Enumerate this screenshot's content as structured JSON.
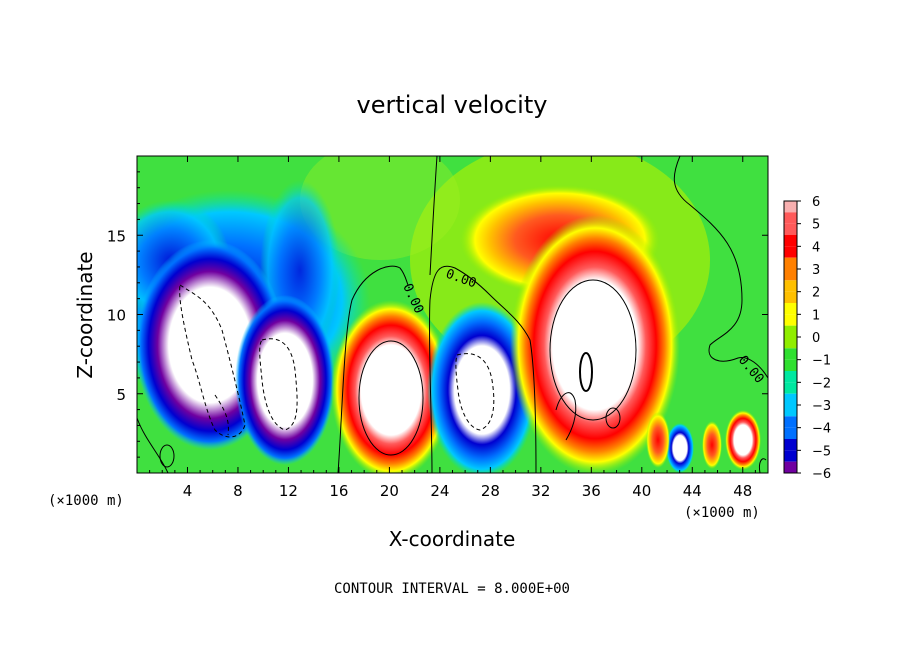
{
  "chart_data": {
    "type": "heatmap",
    "title": "vertical velocity",
    "xlabel": "X-coordinate",
    "ylabel": "Z-coordinate",
    "x_unit": "(×1000 m)",
    "x_unit_right": "(×1000 m)",
    "x_ticks": [
      4,
      8,
      12,
      16,
      20,
      24,
      28,
      32,
      36,
      40,
      44,
      48
    ],
    "y_ticks": [
      5,
      10,
      15
    ],
    "xlim": [
      0,
      50
    ],
    "ylim": [
      0,
      20
    ],
    "colorbar": {
      "labels": [
        "6",
        "5",
        "4",
        "3",
        "2",
        "1",
        "0",
        "−1",
        "−2",
        "−3",
        "−4",
        "−5",
        "−6"
      ],
      "colors": [
        "#f8b0b0",
        "#ff5a5a",
        "#ff0000",
        "#ff8000",
        "#ffc000",
        "#ffff00",
        "#90ee00",
        "#30e030",
        "#00e8a0",
        "#00c8ff",
        "#0070ff",
        "#0000d0",
        "#7000a0"
      ]
    },
    "contour_labels": [
      "0.00",
      "0.00",
      "0.00"
    ],
    "contour_interval_text": "CONTOUR INTERVAL = 8.000E+00",
    "features": [
      {
        "kind": "downdraft",
        "x": 8.5,
        "z": 7.5,
        "value": -12
      },
      {
        "kind": "updraft",
        "x": 20,
        "z": 5,
        "value": 12
      },
      {
        "kind": "downdraft",
        "x": 27,
        "z": 5,
        "value": -10
      },
      {
        "kind": "updraft",
        "x": 36,
        "z": 8,
        "value": 14
      },
      {
        "kind": "updraft",
        "x": 34,
        "z": 14.5,
        "value": 5
      },
      {
        "kind": "downdraft",
        "x": 7,
        "z": 15,
        "value": -4
      }
    ]
  }
}
